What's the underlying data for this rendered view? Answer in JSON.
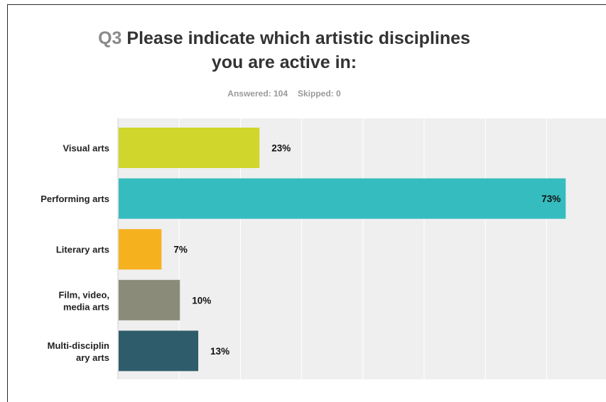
{
  "header": {
    "question_number": "Q3",
    "question_text_line1": "Please indicate which artistic disciplines",
    "question_text_line2": "you are active in:",
    "answered_label": "Answered: 104",
    "skipped_label": "Skipped: 0"
  },
  "colors": {
    "plot_background": "#efefef",
    "gridline": "#ffffff",
    "bar_visual_arts": "#d0d62b",
    "bar_performing_arts": "#35bcbf",
    "bar_literary_arts": "#f6b11f",
    "bar_film_video_media_arts": "#8b8b7a",
    "bar_multidisciplinary_arts": "#2e5c6a"
  },
  "chart_data": {
    "type": "bar",
    "orientation": "horizontal",
    "categories": [
      [
        "Visual arts"
      ],
      [
        "Performing arts"
      ],
      [
        "Literary arts"
      ],
      [
        "Film, video,",
        "media arts"
      ],
      [
        "Multi-disciplin",
        "ary arts"
      ]
    ],
    "values": [
      23,
      73,
      7,
      10,
      13
    ],
    "value_labels": [
      "23%",
      "73%",
      "7%",
      "10%",
      "13%"
    ],
    "xlim": [
      0,
      100
    ],
    "grid": true,
    "legend": "none"
  }
}
